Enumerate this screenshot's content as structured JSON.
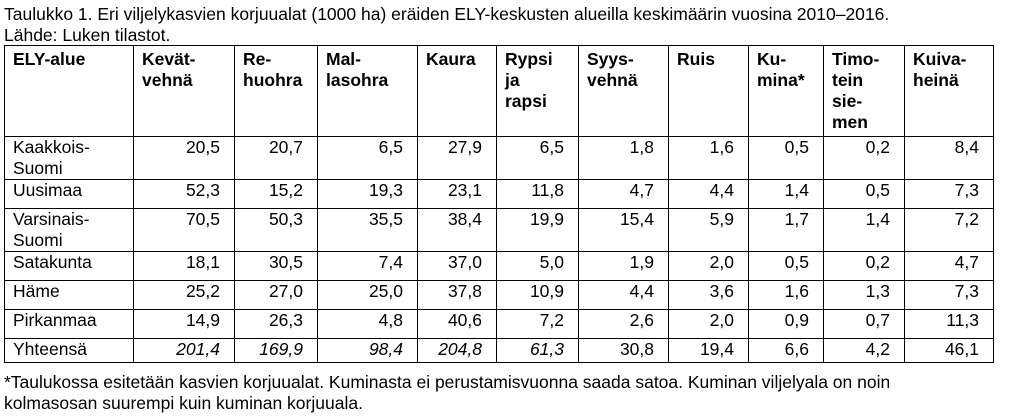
{
  "caption": {
    "line1": "Taulukko 1. Eri viljelykasvien korjuualat (1000 ha) eräiden ELY-keskusten alueilla keskimäärin vuosina 2010–2016.",
    "line2": "Lähde: Luken tilastot."
  },
  "table": {
    "headers": [
      "ELY-alue",
      "Kevät-\nvehnä",
      "Re-\nhuohra",
      "Mal-\nlasohra",
      "Kaura",
      "Rypsi\nja\nrapsi",
      "Syys-\nvehnä",
      "Ruis",
      "Ku-\nmina*",
      "Timo-\ntein\nsie-\nmen",
      "Kuiva-\nheinä"
    ],
    "rows": [
      {
        "region": "Kaakkois-\nSuomi",
        "values": [
          "20,5",
          "20,7",
          "6,5",
          "27,9",
          "6,5",
          "1,8",
          "1,6",
          "0,5",
          "0,2",
          "8,4"
        ]
      },
      {
        "region": "Uusimaa",
        "values": [
          "52,3",
          "15,2",
          "19,3",
          "23,1",
          "11,8",
          "4,7",
          "4,4",
          "1,4",
          "0,5",
          "7,3"
        ]
      },
      {
        "region": "Varsinais-\nSuomi",
        "values": [
          "70,5",
          "50,3",
          "35,5",
          "38,4",
          "19,9",
          "15,4",
          "5,9",
          "1,7",
          "1,4",
          "7,2"
        ]
      },
      {
        "region": "Satakunta",
        "values": [
          "18,1",
          "30,5",
          "7,4",
          "37,0",
          "5,0",
          "1,9",
          "2,0",
          "0,5",
          "0,2",
          "4,7"
        ]
      },
      {
        "region": "Häme",
        "values": [
          "25,2",
          "27,0",
          "25,0",
          "37,8",
          "10,9",
          "4,4",
          "3,6",
          "1,6",
          "1,3",
          "7,3"
        ]
      },
      {
        "region": "Pirkanmaa",
        "values": [
          "14,9",
          "26,3",
          "4,8",
          "40,6",
          "7,2",
          "2,6",
          "2,0",
          "0,9",
          "0,7",
          "11,3"
        ]
      },
      {
        "region": "Yhteensä",
        "values": [
          "201,4",
          "169,9",
          "98,4",
          "204,8",
          "61,3",
          "30,8",
          "19,4",
          "6,6",
          "4,2",
          "46,1"
        ],
        "italic_columns": 5
      }
    ]
  },
  "footnote": {
    "line1": "*Taulukossa esitetään kasvien korjuualat. Kuminasta ei perustamisvuonna saada satoa. Kuminan viljelyala on noin",
    "line2": "kolmasosan suurempi kuin kuminan korjuuala."
  }
}
